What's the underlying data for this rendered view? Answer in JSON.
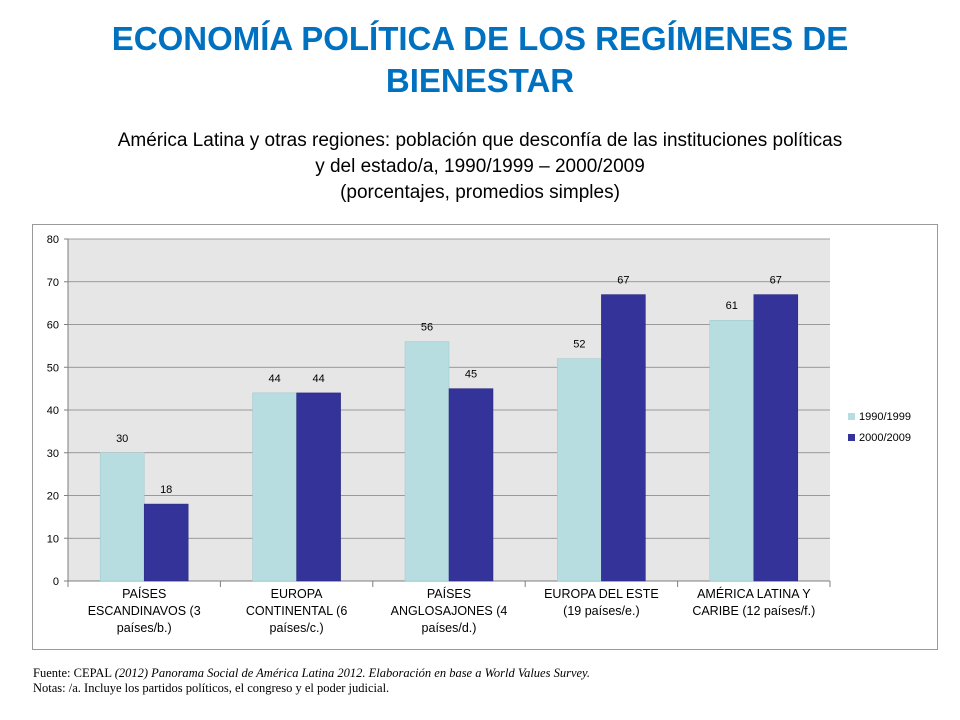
{
  "title": "ECONOMÍA POLÍTICA DE LOS REGÍMENES DE BIENESTAR",
  "subtitle": {
    "line1": "América Latina y otras regiones: población que desconfía de las instituciones políticas",
    "line2": "y del estado/a, 1990/1999 – 2000/2009",
    "line3": "(porcentajes, promedios simples)"
  },
  "colors": {
    "series_1990": "#B7DDE0",
    "series_2000": "#333399",
    "plot_bg": "#E6E6E6",
    "title": "#0070C0"
  },
  "chart_data": {
    "type": "bar",
    "categories": [
      [
        "PAÍSES",
        "ESCANDINAVOS (3",
        "países/b.)"
      ],
      [
        "EUROPA",
        "CONTINENTAL (6",
        "países/c.)"
      ],
      [
        "PAÍSES",
        "ANGLOSAJONES (4",
        "países/d.)"
      ],
      [
        "EUROPA DEL ESTE",
        "(19 países/e.)"
      ],
      [
        "AMÉRICA LATINA Y",
        "CARIBE (12 países/f.)"
      ]
    ],
    "series": [
      {
        "name": "1990/1999",
        "values": [
          30,
          44,
          56,
          52,
          61
        ]
      },
      {
        "name": "2000/2009",
        "values": [
          18,
          44,
          45,
          67,
          67
        ]
      }
    ],
    "ylim": [
      0,
      80
    ],
    "yticks": [
      0,
      10,
      20,
      30,
      40,
      50,
      60,
      70,
      80
    ],
    "grid": true,
    "legend_position": "right"
  },
  "footnotes": {
    "source_label": "Fuente: CEPAL ",
    "source_italic": "(2012) Panorama Social de América Latina 2012. Elaboración en base  a World Values Survey.",
    "notes": "Notas: /a. Incluye los partidos políticos, el congreso y el poder judicial."
  }
}
